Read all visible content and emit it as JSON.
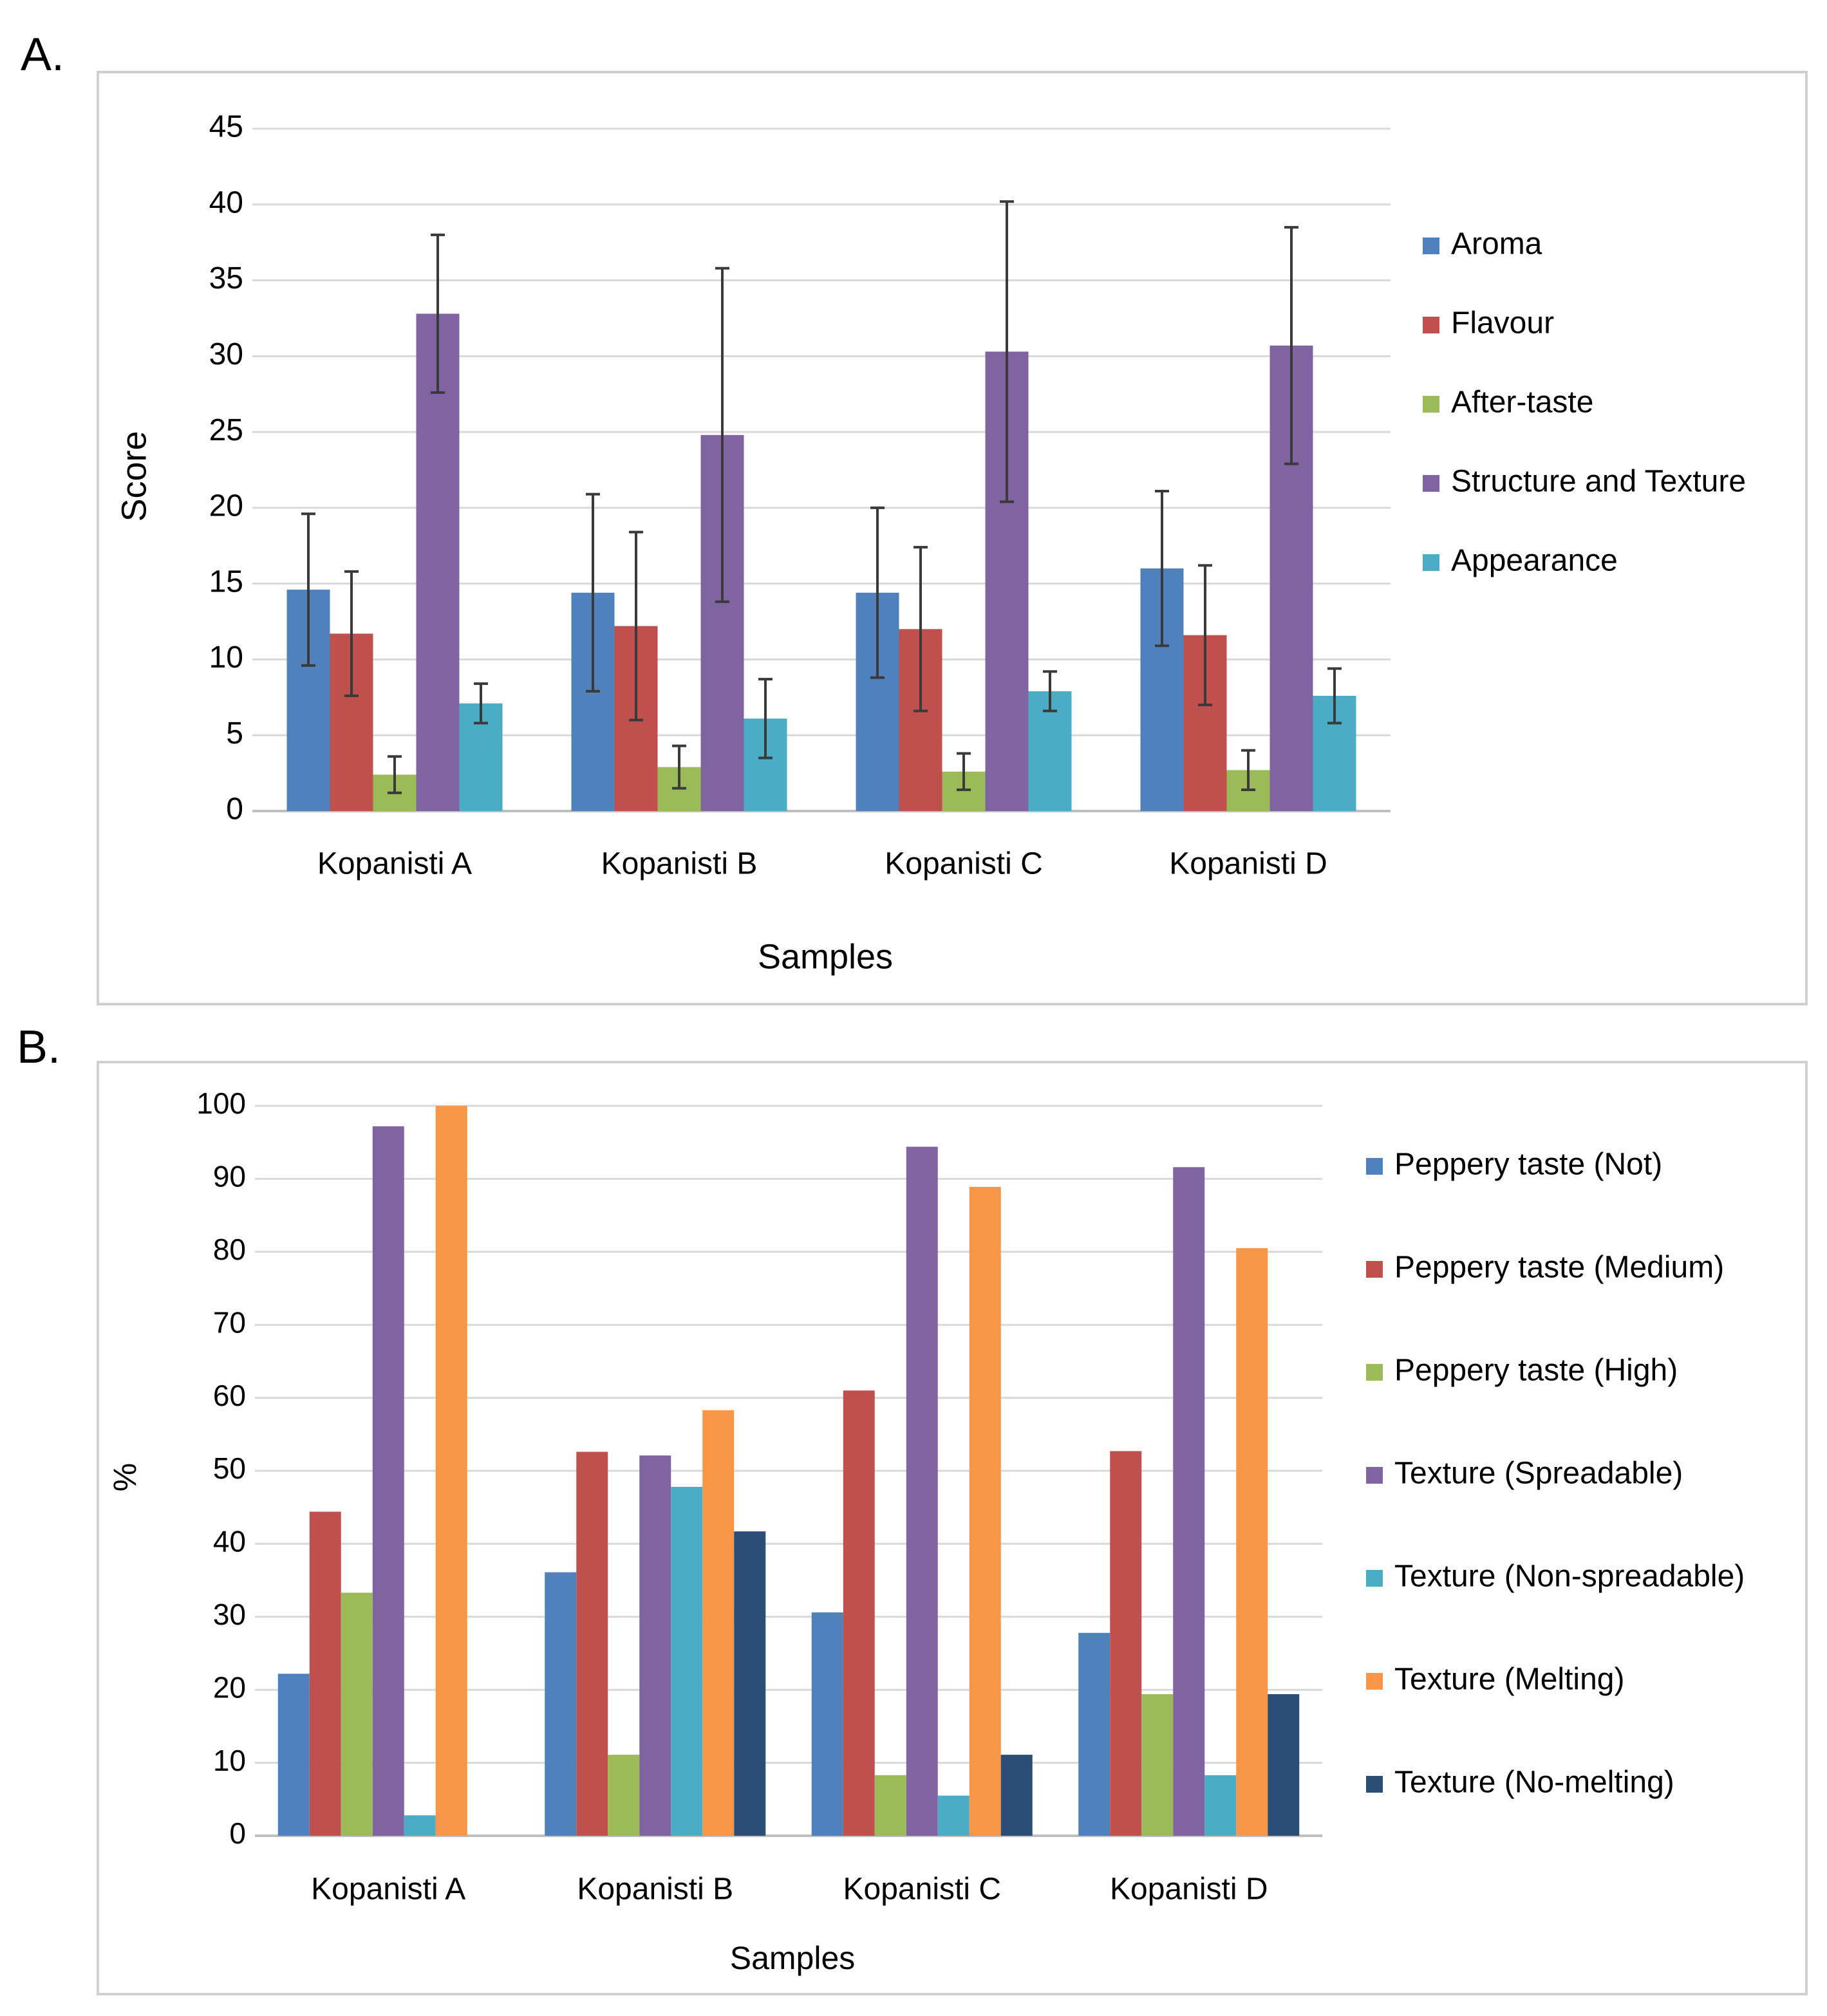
{
  "chart_data": [
    {
      "panel_label": "A.",
      "type": "bar",
      "title": "",
      "xlabel": "Samples",
      "ylabel": "Score",
      "ylim": [
        0,
        45
      ],
      "yticks": [
        0,
        5,
        10,
        15,
        20,
        25,
        30,
        35,
        40,
        45
      ],
      "grid": true,
      "legend_position": "right",
      "categories": [
        "Kopanisti A",
        "Kopanisti B",
        "Kopanisti C",
        "Kopanisti D"
      ],
      "series": [
        {
          "name": "Aroma",
          "color": "#4f81bd",
          "values": [
            14.6,
            14.4,
            14.4,
            16.0
          ],
          "error": [
            5.0,
            6.5,
            5.6,
            5.1
          ]
        },
        {
          "name": "Flavour",
          "color": "#c0504d",
          "values": [
            11.7,
            12.2,
            12.0,
            11.6
          ],
          "error": [
            4.1,
            6.2,
            5.4,
            4.6
          ]
        },
        {
          "name": "After-taste",
          "color": "#9bbb59",
          "values": [
            2.4,
            2.9,
            2.6,
            2.7
          ],
          "error": [
            1.2,
            1.4,
            1.2,
            1.3
          ]
        },
        {
          "name": "Structure and Texture",
          "color": "#8064a2",
          "values": [
            32.8,
            24.8,
            30.3,
            30.7
          ],
          "error": [
            5.2,
            11.0,
            9.9,
            7.8
          ]
        },
        {
          "name": "Appearance",
          "color": "#4bacc6",
          "values": [
            7.1,
            6.1,
            7.9,
            7.6
          ],
          "error": [
            1.3,
            2.6,
            1.3,
            1.8
          ]
        }
      ]
    },
    {
      "panel_label": "B.",
      "type": "bar",
      "title": "",
      "xlabel": "Samples",
      "ylabel": "%",
      "ylim": [
        0,
        100
      ],
      "yticks": [
        0,
        10,
        20,
        30,
        40,
        50,
        60,
        70,
        80,
        90,
        100
      ],
      "grid": true,
      "legend_position": "right",
      "categories": [
        "Kopanisti A",
        "Kopanisti B",
        "Kopanisti C",
        "Kopanisti D"
      ],
      "series": [
        {
          "name": "Peppery taste (Not)",
          "color": "#4f81bd",
          "values": [
            22.2,
            36.1,
            30.6,
            27.8
          ]
        },
        {
          "name": "Peppery taste (Medium)",
          "color": "#c0504d",
          "values": [
            44.4,
            52.6,
            61.0,
            52.7
          ]
        },
        {
          "name": "Peppery taste (High)",
          "color": "#9bbb59",
          "values": [
            33.3,
            11.1,
            8.3,
            19.4
          ]
        },
        {
          "name": "Texture (Spreadable)",
          "color": "#8064a2",
          "values": [
            97.2,
            52.1,
            94.4,
            91.6
          ]
        },
        {
          "name": "Texture (Non-spreadable)",
          "color": "#4bacc6",
          "values": [
            2.8,
            47.8,
            5.5,
            8.3
          ]
        },
        {
          "name": "Texture (Melting)",
          "color": "#f79646",
          "values": [
            100,
            58.3,
            88.9,
            80.5
          ]
        },
        {
          "name": "Texture (No-melting)",
          "color": "#2c4d75",
          "values": [
            0,
            41.7,
            11.1,
            19.4
          ]
        }
      ]
    }
  ]
}
